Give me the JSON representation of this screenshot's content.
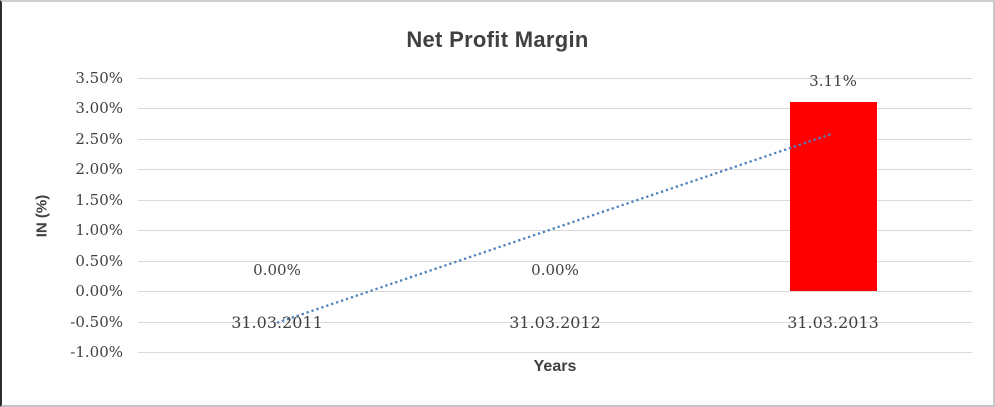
{
  "chart_data": {
    "type": "bar",
    "title": "Net Profit Margin",
    "xlabel": "Years",
    "ylabel": "IN (%)",
    "categories": [
      "31.03.2011",
      "31.03.2012",
      "31.03.2013"
    ],
    "values": [
      0,
      0,
      3.11
    ],
    "data_labels": [
      "0.00%",
      "0.00%",
      "3.11%"
    ],
    "ylim": [
      -1.0,
      3.5
    ],
    "ytick_step": 0.5,
    "ytick_labels": [
      "3.50%",
      "3.00%",
      "2.50%",
      "2.00%",
      "1.50%",
      "1.00%",
      "0.50%",
      "0.00%",
      "-0.50%",
      "-1.00%"
    ],
    "grid": true,
    "legend_position": "none",
    "trendline": {
      "type": "linear",
      "line_style": "dotted",
      "start_value": -0.52,
      "end_value": 2.59
    },
    "colors": {
      "bar": "#FF0000",
      "gridline": "#D9D9D9",
      "text": "#404040",
      "trendline": "#4E81BD"
    }
  }
}
